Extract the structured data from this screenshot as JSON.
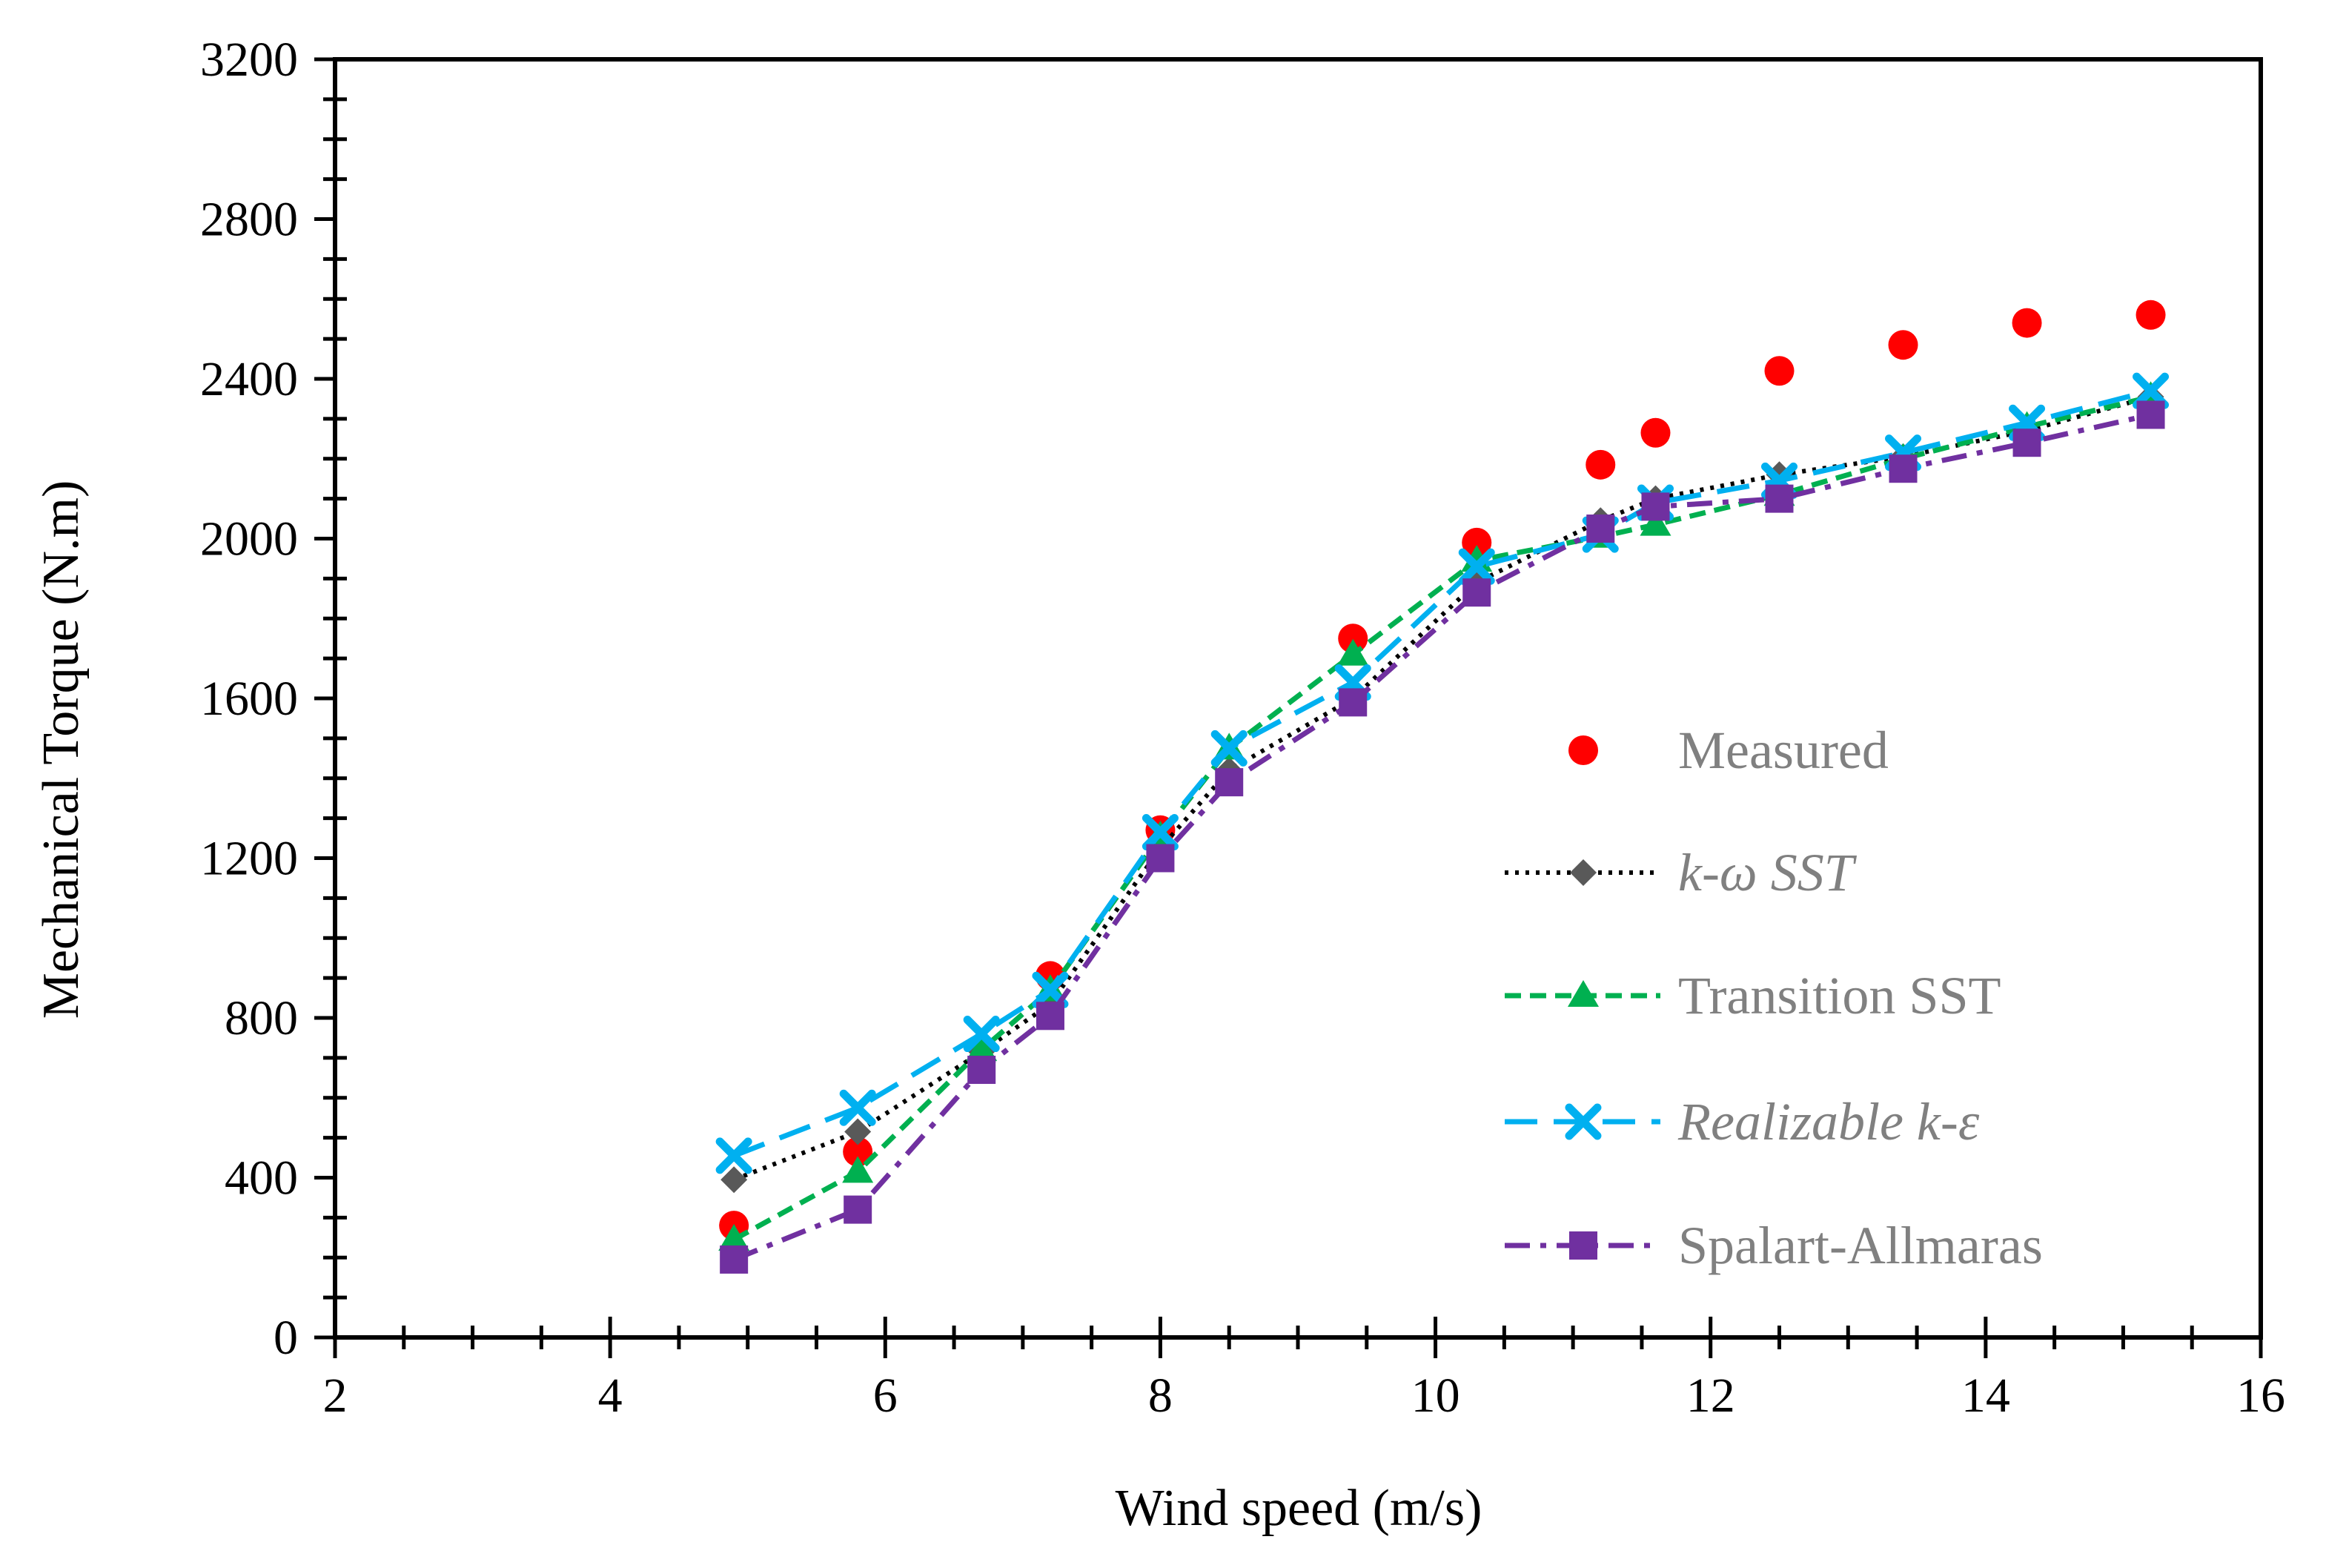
{
  "chart_data": {
    "type": "line",
    "title": "",
    "xlabel": "Wind speed (m/s)",
    "ylabel": "Mechanical Torque (N.m)",
    "xlim": [
      2,
      16
    ],
    "ylim": [
      0,
      3200
    ],
    "xticks": [
      "2",
      "4",
      "6",
      "8",
      "10",
      "12",
      "14",
      "16"
    ],
    "yticks": [
      "0",
      "400",
      "800",
      "1200",
      "1600",
      "2000",
      "2400",
      "2800",
      "3200"
    ],
    "grid": false,
    "legend_position": "center-right",
    "series": [
      {
        "name": "Measured",
        "italic": false,
        "marker": "circle",
        "line": "none",
        "color": "#ff0000",
        "x": [
          4.9,
          5.8,
          7.2,
          8.0,
          9.4,
          10.3,
          11.2,
          11.6,
          12.5,
          13.4,
          14.3,
          15.2
        ],
        "y": [
          280,
          465,
          905,
          1270,
          1750,
          1990,
          2185,
          2265,
          2420,
          2485,
          2540,
          2560
        ]
      },
      {
        "name": "k-ω SST",
        "italic": true,
        "marker": "diamond",
        "line": "dotted",
        "color": "#000000",
        "marker_color": "#595959",
        "x": [
          4.9,
          5.8,
          6.7,
          7.2,
          8.0,
          8.5,
          9.4,
          10.3,
          11.2,
          11.6,
          12.5,
          13.4,
          14.3,
          15.2
        ],
        "y": [
          395,
          515,
          715,
          835,
          1225,
          1420,
          1600,
          1890,
          2045,
          2100,
          2160,
          2205,
          2270,
          2355
        ]
      },
      {
        "name": "Transition SST",
        "italic": false,
        "marker": "triangle",
        "line": "dashed",
        "color": "#00b050",
        "x": [
          4.9,
          5.8,
          6.7,
          7.2,
          8.0,
          8.5,
          9.4,
          10.3,
          11.2,
          11.6,
          12.5,
          13.4,
          14.3,
          15.2
        ],
        "y": [
          245,
          415,
          720,
          870,
          1255,
          1475,
          1710,
          1945,
          2005,
          2035,
          2110,
          2200,
          2280,
          2355
        ]
      },
      {
        "name": "Realizable k-ε",
        "italic": true,
        "marker": "x",
        "line": "long-dash",
        "color": "#00b0f0",
        "x": [
          4.9,
          5.8,
          6.7,
          7.2,
          8.0,
          8.5,
          9.4,
          10.3,
          11.2,
          11.6,
          12.5,
          13.4,
          14.3,
          15.2
        ],
        "y": [
          455,
          575,
          760,
          870,
          1265,
          1475,
          1640,
          1930,
          2010,
          2090,
          2145,
          2215,
          2290,
          2370
        ]
      },
      {
        "name": "Spalart-Allmaras",
        "italic": false,
        "marker": "square",
        "line": "dash-dot",
        "color": "#7030a0",
        "x": [
          4.9,
          5.8,
          6.7,
          7.2,
          8.0,
          8.5,
          9.4,
          10.3,
          11.2,
          11.6,
          12.5,
          13.4,
          14.3,
          15.2
        ],
        "y": [
          195,
          320,
          670,
          805,
          1200,
          1390,
          1590,
          1865,
          2025,
          2080,
          2100,
          2175,
          2240,
          2310
        ]
      }
    ]
  }
}
